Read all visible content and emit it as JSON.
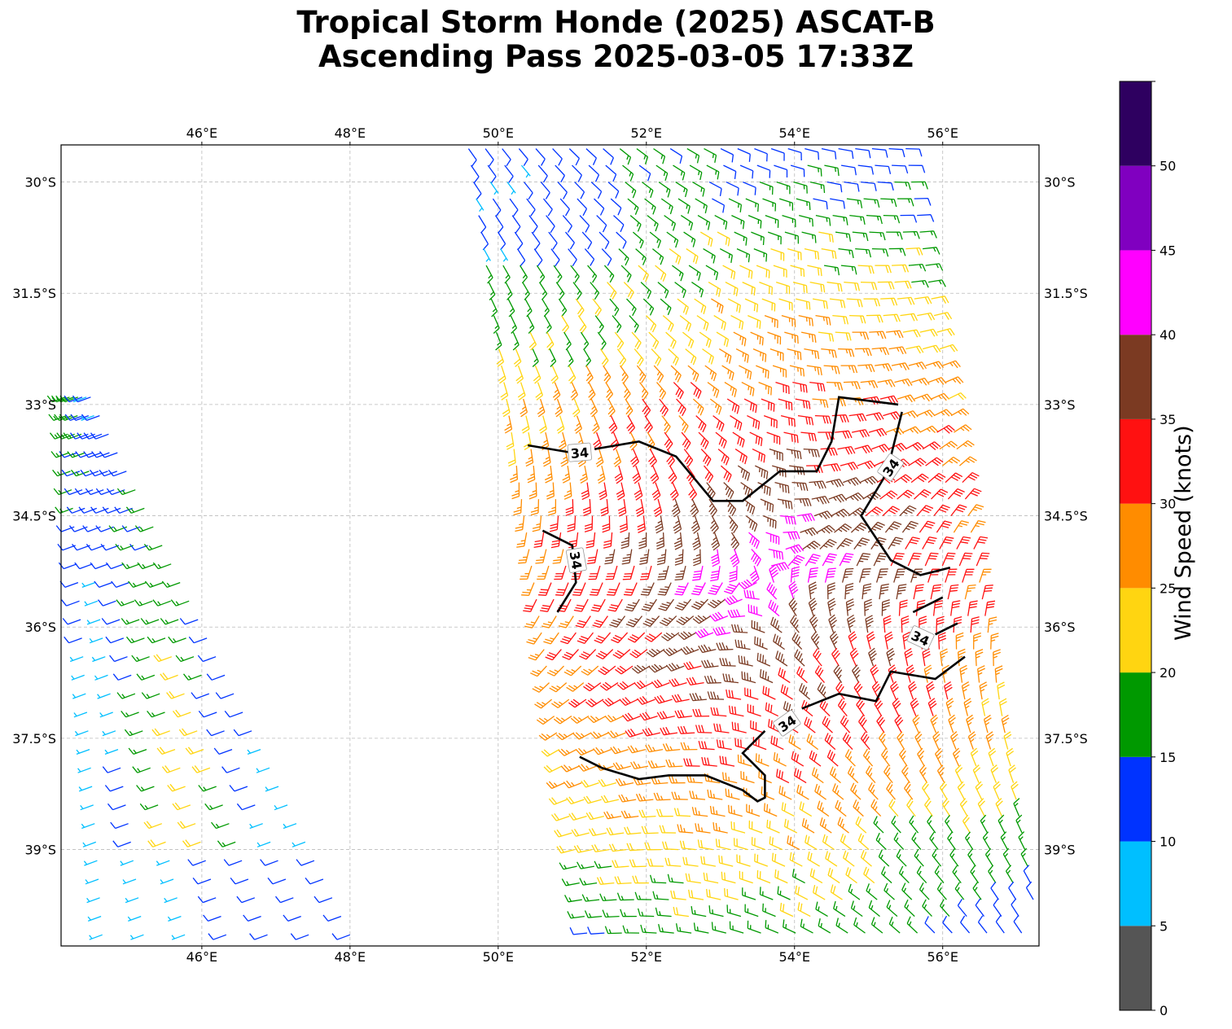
{
  "title": {
    "line1": "Tropical Storm Honde (2025) ASCAT-B",
    "line2": "Ascending Pass 2025-03-05 17:33Z"
  },
  "map": {
    "lon_range": [
      44.1,
      57.3
    ],
    "lat_range": [
      -29.5,
      -40.3
    ],
    "lon_ticks": [
      {
        "value": 46,
        "label": "46°E"
      },
      {
        "value": 48,
        "label": "48°E"
      },
      {
        "value": 50,
        "label": "50°E"
      },
      {
        "value": 52,
        "label": "52°E"
      },
      {
        "value": 54,
        "label": "54°E"
      },
      {
        "value": 56,
        "label": "56°E"
      }
    ],
    "lat_ticks": [
      {
        "value": -30,
        "label": "30°S"
      },
      {
        "value": -31.5,
        "label": "31.5°S"
      },
      {
        "value": -33,
        "label": "33°S"
      },
      {
        "value": -34.5,
        "label": "34.5°S"
      },
      {
        "value": -36,
        "label": "36°S"
      },
      {
        "value": -37.5,
        "label": "37.5°S"
      },
      {
        "value": -39,
        "label": "39°S"
      }
    ],
    "gridlines": true,
    "contour": {
      "level": 34,
      "label": "34",
      "color": "#000000"
    }
  },
  "colorbar": {
    "label": "Wind Speed (knots)",
    "tick_labels": [
      "0",
      "5",
      "10",
      "15",
      "20",
      "25",
      "30",
      "35",
      "40",
      "45",
      "50"
    ],
    "bins": [
      {
        "range": [
          0,
          5
        ],
        "color": "#555555"
      },
      {
        "range": [
          5,
          10
        ],
        "color": "#00BFFF"
      },
      {
        "range": [
          10,
          15
        ],
        "color": "#0033FF"
      },
      {
        "range": [
          15,
          20
        ],
        "color": "#009900"
      },
      {
        "range": [
          20,
          25
        ],
        "color": "#FFD511"
      },
      {
        "range": [
          25,
          30
        ],
        "color": "#FF8C00"
      },
      {
        "range": [
          30,
          35
        ],
        "color": "#FF1111"
      },
      {
        "range": [
          35,
          40
        ],
        "color": "#7B3A22"
      },
      {
        "range": [
          40,
          45
        ],
        "color": "#FF00FF"
      },
      {
        "range": [
          45,
          50
        ],
        "color": "#8000C0"
      },
      {
        "range": [
          50,
          55
        ],
        "color": "#2E0060"
      }
    ]
  }
}
